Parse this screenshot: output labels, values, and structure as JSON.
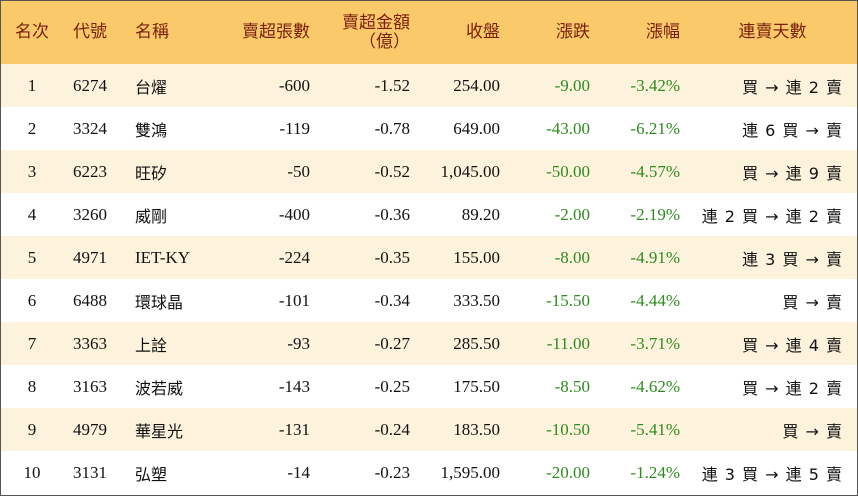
{
  "headers": {
    "rank": "名次",
    "code": "代號",
    "name": "名稱",
    "sell_lots": "賣超張數",
    "sell_amount_line1": "賣超金額",
    "sell_amount_line2": "（億）",
    "close": "收盤",
    "change": "漲跌",
    "change_pct": "漲幅",
    "days": "連賣天數"
  },
  "rows": [
    {
      "rank": "1",
      "code": "6274",
      "name": "台燿",
      "sell_lots": "-600",
      "sell_amount": "-1.52",
      "close": "254.00",
      "change": "-9.00",
      "change_pct": "-3.42%",
      "days": "買 → 連 2 賣"
    },
    {
      "rank": "2",
      "code": "3324",
      "name": "雙鴻",
      "sell_lots": "-119",
      "sell_amount": "-0.78",
      "close": "649.00",
      "change": "-43.00",
      "change_pct": "-6.21%",
      "days": "連 6 買 → 賣"
    },
    {
      "rank": "3",
      "code": "6223",
      "name": "旺矽",
      "sell_lots": "-50",
      "sell_amount": "-0.52",
      "close": "1,045.00",
      "change": "-50.00",
      "change_pct": "-4.57%",
      "days": "買 → 連 9 賣"
    },
    {
      "rank": "4",
      "code": "3260",
      "name": "威剛",
      "sell_lots": "-400",
      "sell_amount": "-0.36",
      "close": "89.20",
      "change": "-2.00",
      "change_pct": "-2.19%",
      "days": "連 2 買 → 連 2 賣"
    },
    {
      "rank": "5",
      "code": "4971",
      "name": "IET-KY",
      "sell_lots": "-224",
      "sell_amount": "-0.35",
      "close": "155.00",
      "change": "-8.00",
      "change_pct": "-4.91%",
      "days": "連 3 買 → 賣"
    },
    {
      "rank": "6",
      "code": "6488",
      "name": "環球晶",
      "sell_lots": "-101",
      "sell_amount": "-0.34",
      "close": "333.50",
      "change": "-15.50",
      "change_pct": "-4.44%",
      "days": "買 → 賣"
    },
    {
      "rank": "7",
      "code": "3363",
      "name": "上詮",
      "sell_lots": "-93",
      "sell_amount": "-0.27",
      "close": "285.50",
      "change": "-11.00",
      "change_pct": "-3.71%",
      "days": "買 → 連 4 賣"
    },
    {
      "rank": "8",
      "code": "3163",
      "name": "波若威",
      "sell_lots": "-143",
      "sell_amount": "-0.25",
      "close": "175.50",
      "change": "-8.50",
      "change_pct": "-4.62%",
      "days": "買 → 連 2 賣"
    },
    {
      "rank": "9",
      "code": "4979",
      "name": "華星光",
      "sell_lots": "-131",
      "sell_amount": "-0.24",
      "close": "183.50",
      "change": "-10.50",
      "change_pct": "-5.41%",
      "days": "買 → 賣"
    },
    {
      "rank": "10",
      "code": "3131",
      "name": "弘塑",
      "sell_lots": "-14",
      "sell_amount": "-0.23",
      "close": "1,595.00",
      "change": "-20.00",
      "change_pct": "-1.24%",
      "days": "連 3 買 → 連 5 賣"
    }
  ],
  "colors": {
    "header_bg": "#f9c96a",
    "header_text": "#7a1f0c",
    "odd_row_bg": "#fdf3dc",
    "even_row_bg": "#ffffff",
    "change_text": "#2e8b1e"
  }
}
